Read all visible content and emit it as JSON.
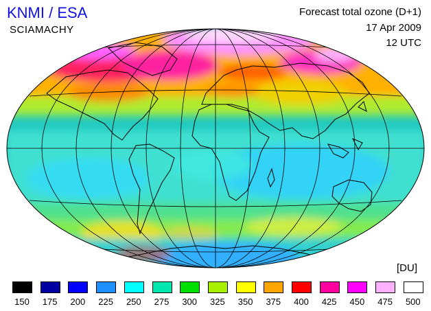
{
  "header": {
    "brand": "KNMI / ESA",
    "instrument": "SCIAMACHY",
    "product": "Forecast total ozone (D+1)",
    "date": "17 Apr 2009",
    "time": "12 UTC"
  },
  "map": {
    "projection": "Hammer-Aitoff global",
    "graticule": "30-degree meridians and parallels",
    "background": "#20c8c0"
  },
  "legend": {
    "unit": "[DU]",
    "classes": [
      {
        "label": "150",
        "color": "#000000"
      },
      {
        "label": "175",
        "color": "#0000a0"
      },
      {
        "label": "200",
        "color": "#0000ff"
      },
      {
        "label": "225",
        "color": "#1e90ff"
      },
      {
        "label": "250",
        "color": "#00ffff"
      },
      {
        "label": "275",
        "color": "#00e8b0"
      },
      {
        "label": "300",
        "color": "#00e000"
      },
      {
        "label": "325",
        "color": "#a8f000"
      },
      {
        "label": "350",
        "color": "#ffff00"
      },
      {
        "label": "375",
        "color": "#ffa500"
      },
      {
        "label": "400",
        "color": "#ff0000"
      },
      {
        "label": "425",
        "color": "#ff00a0"
      },
      {
        "label": "450",
        "color": "#ff00ff"
      },
      {
        "label": "475",
        "color": "#ffb0ff"
      },
      {
        "label": "500",
        "color": "#ffffff"
      }
    ]
  }
}
